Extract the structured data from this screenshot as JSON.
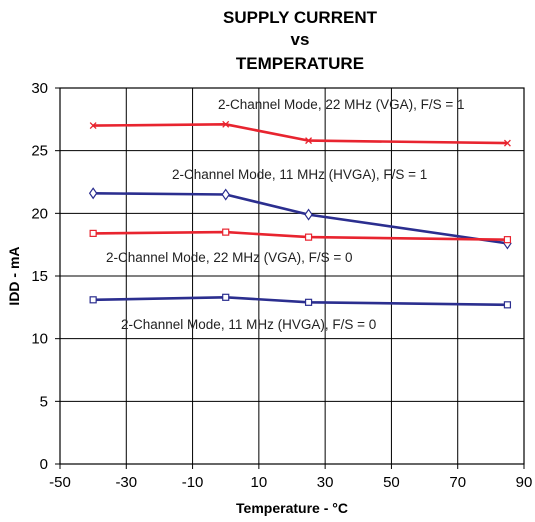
{
  "chart_data": {
    "type": "line",
    "title": [
      "SUPPLY CURRENT",
      "vs",
      "TEMPERATURE"
    ],
    "xlabel": "Temperature - °C",
    "ylabel": "IDD - mA",
    "xlim": [
      -50,
      90
    ],
    "ylim": [
      0,
      30
    ],
    "xticks": [
      -50,
      -30,
      -10,
      10,
      30,
      50,
      70,
      90
    ],
    "yticks": [
      0,
      5,
      10,
      15,
      20,
      25,
      30
    ],
    "grid": true,
    "x": [
      -40,
      0,
      25,
      85
    ],
    "series": [
      {
        "name": "2-Channel Mode, 22 MHz (VGA), F/S = 1",
        "color": "#e8242f",
        "marker": "x",
        "values": [
          27.0,
          27.1,
          25.8,
          25.6
        ]
      },
      {
        "name": "2-Channel Mode, 11 MHz (HVGA), F/S = 1",
        "color": "#2b2e8f",
        "marker": "diamond",
        "values": [
          21.6,
          21.5,
          19.9,
          17.6
        ]
      },
      {
        "name": "2-Channel Mode, 22 MHz (VGA), F/S = 0",
        "color": "#e8242f",
        "marker": "square",
        "values": [
          18.4,
          18.5,
          18.1,
          17.9
        ]
      },
      {
        "name": "2-Channel Mode, 11 MHz (HVGA), F/S = 0",
        "color": "#2b2e8f",
        "marker": "square",
        "values": [
          13.1,
          13.3,
          12.9,
          12.7
        ]
      }
    ]
  }
}
